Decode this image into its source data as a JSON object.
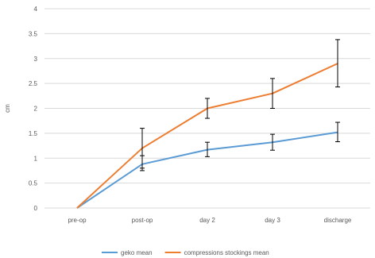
{
  "chart_data": {
    "type": "line",
    "title": "",
    "xlabel": "",
    "ylabel": "cm",
    "ylim": [
      0,
      4
    ],
    "y_ticks": [
      "0",
      "0.5",
      "1",
      "1.5",
      "2",
      "2.5",
      "3",
      "3.5",
      "4"
    ],
    "categories": [
      "pre-op",
      "post-op",
      "day 2",
      "day 3",
      "discharge"
    ],
    "grid": true,
    "legend_position": "bottom",
    "series": [
      {
        "name": "geko mean",
        "color": "#5B9BD5",
        "values": [
          0,
          0.88,
          1.17,
          1.32,
          1.52
        ],
        "error_low": [
          null,
          0.75,
          1.03,
          1.16,
          1.33
        ],
        "error_high": [
          null,
          1.05,
          1.32,
          1.48,
          1.72
        ]
      },
      {
        "name": "compressions stockings mean",
        "color": "#ED7D31",
        "values": [
          0,
          1.2,
          2.0,
          2.3,
          2.9
        ],
        "error_low": [
          null,
          0.8,
          1.8,
          2.0,
          2.43
        ],
        "error_high": [
          null,
          1.6,
          2.2,
          2.6,
          3.38
        ]
      }
    ]
  }
}
